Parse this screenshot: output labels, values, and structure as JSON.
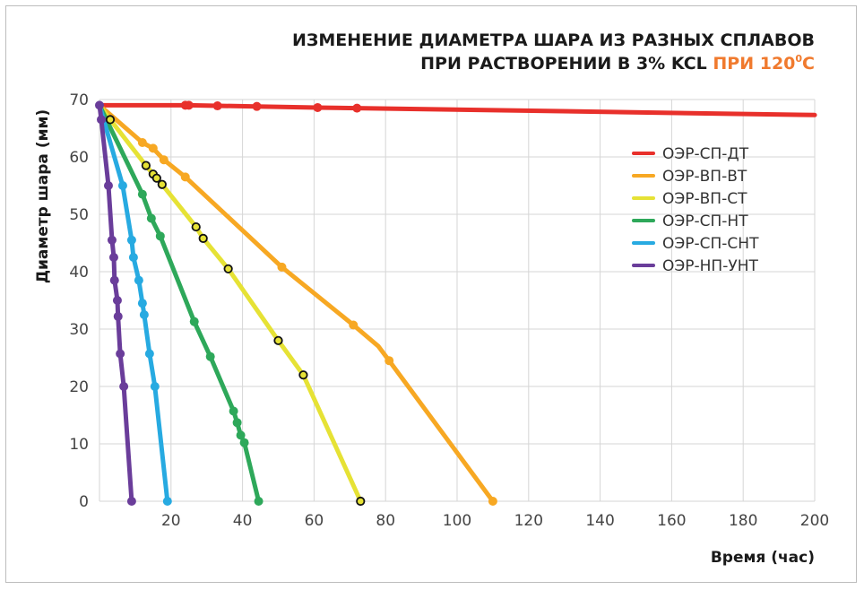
{
  "chart_data": {
    "type": "line",
    "title_line1": "ИЗМЕНЕНИЕ ДИАМЕТРА ШАРА ИЗ РАЗНЫХ СПЛАВОВ",
    "title_line2_main": "ПРИ РАСТВОРЕНИИ В 3% KCL",
    "title_line2_accent": "ПРИ 120",
    "title_line2_sup": "0",
    "title_line2_unit": "С",
    "xlabel": "Время (час)",
    "ylabel": "Диаметр шара (мм)",
    "xlim": [
      0,
      200
    ],
    "ylim": [
      0,
      70
    ],
    "x_ticks": [
      "20",
      "40",
      "60",
      "80",
      "100",
      "120",
      "140",
      "160",
      "180",
      "200"
    ],
    "y_ticks": [
      "0",
      "10",
      "20",
      "30",
      "40",
      "50",
      "60",
      "70"
    ],
    "grid": true,
    "legend_position": "right",
    "accent_color": "#f07a2e",
    "series": [
      {
        "name": "ОЭР-СП-ДТ",
        "color": "#e8302b",
        "marker": "filled",
        "x": [
          0,
          24,
          25,
          33,
          44,
          61,
          72,
          200
        ],
        "y": [
          69,
          69,
          69,
          68.9,
          68.8,
          68.6,
          68.5,
          67.3
        ],
        "marked": [
          1,
          2,
          3,
          4,
          5,
          6
        ]
      },
      {
        "name": "ОЭР-ВП-ВТ",
        "color": "#f7a823",
        "marker": "filled",
        "x": [
          0,
          12,
          15,
          18,
          24,
          51,
          71,
          78,
          81,
          110
        ],
        "y": [
          69,
          62.5,
          61.5,
          59.5,
          56.5,
          40.8,
          30.7,
          27,
          24.5,
          0
        ],
        "marked": [
          1,
          2,
          3,
          4,
          5,
          6,
          8,
          9
        ]
      },
      {
        "name": "ОЭР-ВП-СТ",
        "color": "#e6e235",
        "marker": "open",
        "x": [
          0,
          3,
          13,
          15,
          16,
          17.5,
          27,
          29,
          36,
          50,
          57,
          73
        ],
        "y": [
          69,
          66.5,
          58.5,
          57,
          56.3,
          55.2,
          47.8,
          45.8,
          40.5,
          28,
          22,
          0
        ],
        "marked": [
          1,
          2,
          3,
          4,
          5,
          6,
          7,
          8,
          9,
          10,
          11
        ]
      },
      {
        "name": "ОЭР-СП-НТ",
        "color": "#2ea85a",
        "marker": "filled",
        "x": [
          0,
          12,
          14.5,
          17,
          26.5,
          31,
          37.5,
          38.5,
          39.5,
          40.5,
          44.5
        ],
        "y": [
          69,
          53.5,
          49.3,
          46.2,
          31.3,
          25.2,
          15.7,
          13.7,
          11.5,
          10.2,
          0
        ],
        "marked": [
          1,
          2,
          3,
          4,
          5,
          6,
          7,
          8,
          9,
          10
        ]
      },
      {
        "name": "ОЭР-СП-СНТ",
        "color": "#27aae1",
        "marker": "filled",
        "x": [
          0,
          6.5,
          9,
          9.5,
          11,
          12,
          12.5,
          14,
          15.5,
          19
        ],
        "y": [
          69,
          55,
          45.5,
          42.5,
          38.5,
          34.5,
          32.5,
          25.7,
          20,
          0
        ],
        "marked": [
          1,
          2,
          3,
          4,
          5,
          6,
          7,
          8,
          9
        ]
      },
      {
        "name": "ОЭР-НП-УНТ",
        "color": "#6a3d9a",
        "marker": "filled",
        "x": [
          0,
          0.5,
          2.5,
          3.5,
          4,
          4.2,
          5,
          5.2,
          5.8,
          6.8,
          9
        ],
        "y": [
          69,
          66.5,
          55,
          45.5,
          42.5,
          38.5,
          35,
          32.2,
          25.7,
          20,
          0
        ],
        "marked": [
          0,
          1,
          2,
          3,
          4,
          5,
          6,
          7,
          8,
          9,
          10
        ]
      }
    ]
  }
}
